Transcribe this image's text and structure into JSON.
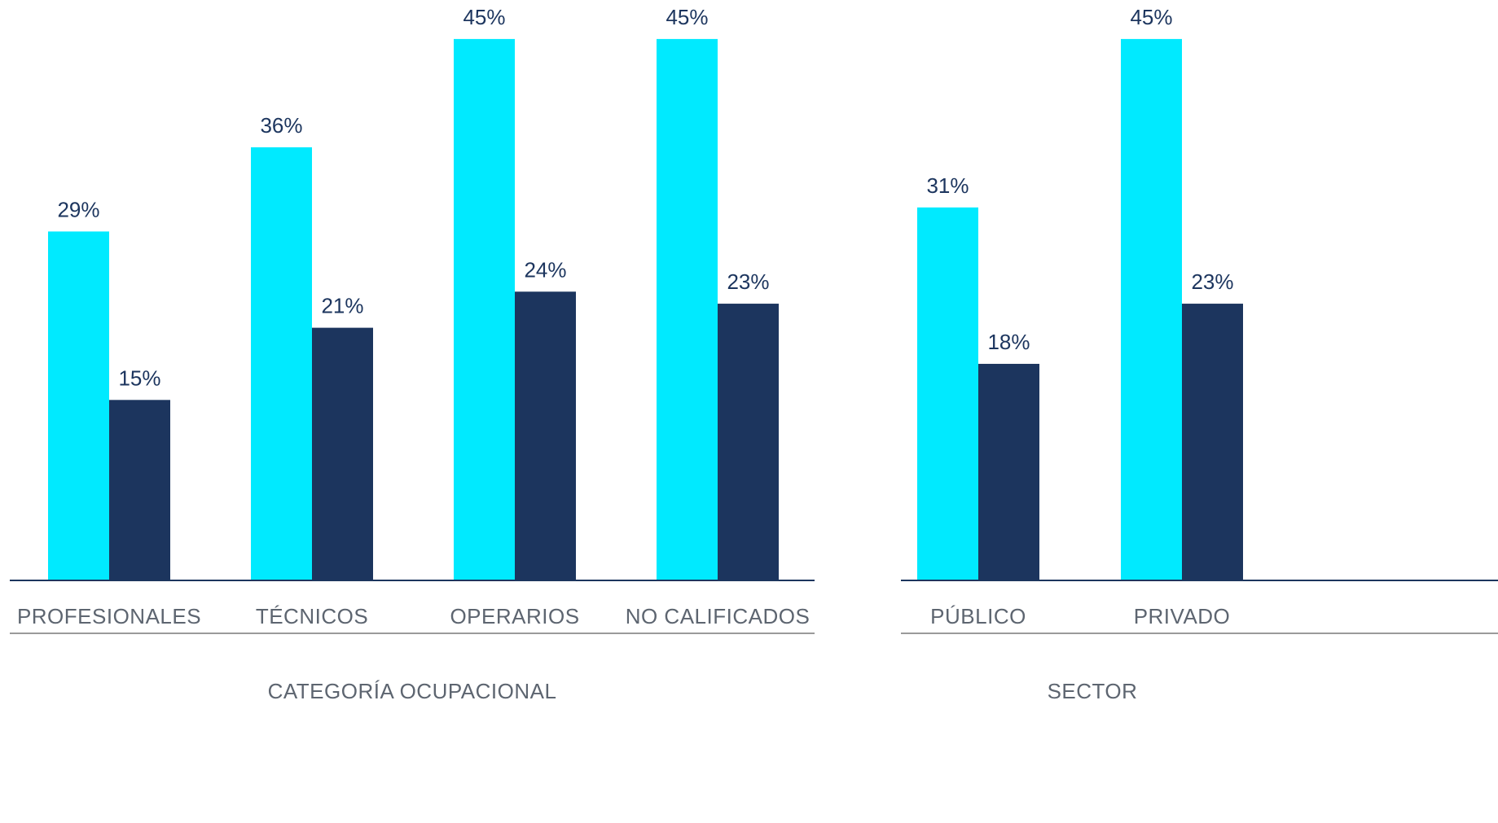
{
  "chart_data": [
    {
      "type": "bar",
      "group_label": "CATEGORÍA OCUPACIONAL",
      "categories": [
        "PROFESIONALES",
        "TÉCNICOS",
        "OPERARIOS",
        "NO CALIFICADOS"
      ],
      "series": [
        {
          "values": [
            29,
            36,
            45,
            45
          ],
          "labels": [
            "29%",
            "36%",
            "45%",
            "45%"
          ],
          "color": "#00eaff"
        },
        {
          "values": [
            15,
            21,
            24,
            23
          ],
          "labels": [
            "15%",
            "21%",
            "24%",
            "23%"
          ],
          "color": "#1c355e"
        }
      ],
      "ylim": [
        0,
        45
      ],
      "grid": false
    },
    {
      "type": "bar",
      "group_label": "SECTOR",
      "categories": [
        "PÚBLICO",
        "PRIVADO"
      ],
      "series": [
        {
          "values": [
            31,
            45
          ],
          "labels": [
            "31%",
            "45%"
          ],
          "color": "#00eaff"
        },
        {
          "values": [
            18,
            23
          ],
          "labels": [
            "18%",
            "23%"
          ],
          "color": "#1c355e"
        }
      ],
      "ylim": [
        0,
        45
      ],
      "grid": false
    }
  ],
  "colors": {
    "axis": "#1c355e",
    "separator": "#9a9a9a",
    "tick_text": "#5d6570",
    "value_text": "#1c355e"
  }
}
